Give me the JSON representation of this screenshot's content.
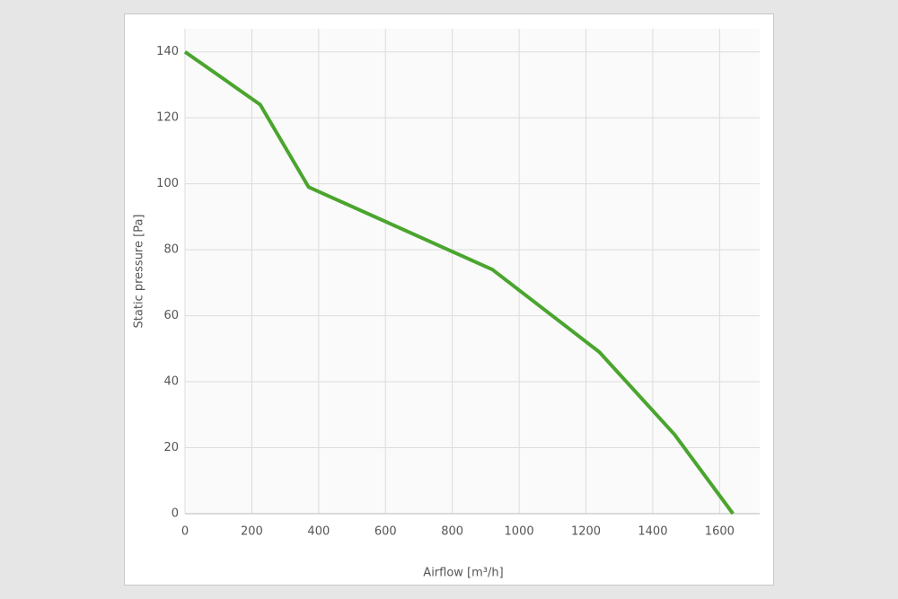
{
  "chart_data": {
    "type": "line",
    "x_label": "Airflow [m³/h]",
    "y_label": "Static pressure [Pa]",
    "x": [
      0,
      225,
      370,
      920,
      1240,
      1465,
      1640
    ],
    "series": [
      {
        "color": "#4aa52e",
        "values": [
          140,
          124,
          99,
          74,
          49,
          24,
          0
        ]
      }
    ],
    "xlim": [
      0,
      1720
    ],
    "xticks": [
      0,
      200,
      400,
      600,
      800,
      1000,
      1200,
      1400,
      1600
    ],
    "ylim": [
      0,
      147
    ],
    "yticks": [
      0,
      20,
      40,
      60,
      80,
      100,
      120,
      140
    ],
    "grid": true
  }
}
